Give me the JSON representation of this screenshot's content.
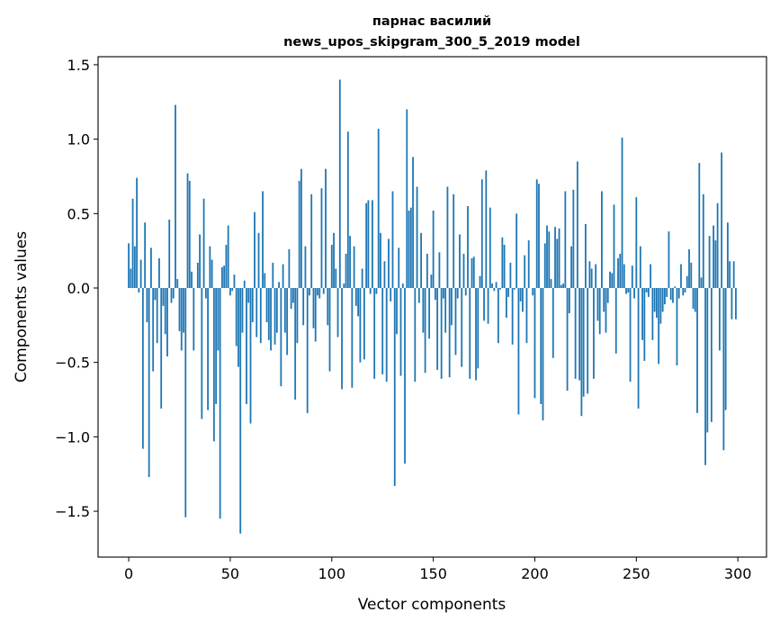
{
  "chart_data": {
    "type": "bar",
    "title": [
      "парнас василий",
      "news_upos_skipgram_300_5_2019 model"
    ],
    "xlabel": "Vector components",
    "ylabel": "Components values",
    "xlim": [
      -15.1,
      314.1
    ],
    "ylim": [
      -1.808,
      1.554
    ],
    "xticks": [
      0,
      50,
      100,
      150,
      200,
      250,
      300
    ],
    "xtick_labels": [
      "0",
      "50",
      "100",
      "150",
      "200",
      "250",
      "300"
    ],
    "yticks": [
      1.5,
      1.0,
      0.5,
      0.0,
      -0.5,
      -1.0,
      -1.5
    ],
    "ytick_labels": [
      "1.5",
      "1.0",
      "0.5",
      "0.0",
      "−0.5",
      "−1.0",
      "−1.5"
    ],
    "grid": false,
    "bar_color": "#1f77b4",
    "values": [
      0.3,
      0.13,
      0.6,
      0.28,
      0.74,
      -0.03,
      0.19,
      -1.08,
      0.44,
      -0.23,
      -1.27,
      0.27,
      -0.56,
      -0.08,
      -0.37,
      0.2,
      -0.81,
      -0.12,
      -0.31,
      -0.46,
      0.46,
      -0.1,
      -0.07,
      1.23,
      0.06,
      -0.29,
      -0.42,
      -0.3,
      -1.54,
      0.77,
      0.72,
      0.11,
      -0.42,
      0.0,
      0.17,
      0.36,
      -0.88,
      0.6,
      -0.07,
      -0.82,
      0.28,
      0.19,
      -1.03,
      -0.78,
      -0.42,
      -1.55,
      0.14,
      0.15,
      0.29,
      0.42,
      -0.05,
      -0.02,
      0.09,
      -0.39,
      -0.53,
      -1.65,
      -0.3,
      0.05,
      -0.78,
      -0.1,
      -0.91,
      -0.23,
      0.51,
      -0.33,
      0.37,
      -0.37,
      0.65,
      0.1,
      -0.23,
      -0.35,
      -0.42,
      0.17,
      -0.38,
      -0.3,
      0.04,
      -0.66,
      0.16,
      -0.3,
      -0.45,
      0.26,
      -0.14,
      -0.1,
      -0.75,
      -0.37,
      0.72,
      0.8,
      -0.25,
      0.28,
      -0.84,
      -0.05,
      0.63,
      -0.27,
      -0.36,
      -0.05,
      -0.07,
      0.67,
      -0.04,
      0.8,
      -0.25,
      -0.56,
      0.29,
      0.37,
      0.13,
      -0.33,
      1.4,
      -0.68,
      0.03,
      0.23,
      1.05,
      0.35,
      -0.67,
      0.28,
      -0.12,
      -0.19,
      -0.5,
      0.13,
      -0.48,
      0.57,
      0.59,
      -0.04,
      0.59,
      -0.61,
      -0.04,
      1.07,
      0.37,
      -0.58,
      0.18,
      -0.63,
      0.33,
      -0.09,
      0.65,
      -1.33,
      -0.31,
      0.27,
      -0.59,
      0.03,
      -1.18,
      1.2,
      0.52,
      0.54,
      0.88,
      -0.63,
      0.68,
      -0.1,
      0.37,
      -0.3,
      -0.57,
      0.23,
      -0.34,
      0.09,
      0.52,
      -0.08,
      -0.55,
      0.24,
      -0.61,
      -0.07,
      -0.3,
      0.68,
      -0.6,
      -0.25,
      0.63,
      -0.45,
      -0.07,
      0.36,
      -0.53,
      0.23,
      -0.05,
      0.55,
      -0.61,
      0.2,
      0.21,
      -0.62,
      -0.54,
      0.08,
      0.73,
      -0.22,
      0.79,
      -0.24,
      0.54,
      0.03,
      -0.02,
      0.04,
      -0.37,
      -0.01,
      0.34,
      0.29,
      -0.2,
      -0.06,
      0.17,
      -0.38,
      -0.01,
      0.5,
      -0.85,
      -0.09,
      -0.16,
      0.22,
      -0.37,
      0.32,
      0.0,
      -0.05,
      -0.74,
      0.73,
      0.7,
      -0.78,
      -0.89,
      0.3,
      0.42,
      0.38,
      0.06,
      -0.47,
      0.41,
      0.33,
      0.4,
      0.02,
      0.03,
      0.65,
      -0.69,
      -0.17,
      0.28,
      0.66,
      -0.61,
      0.85,
      -0.62,
      -0.86,
      -0.73,
      0.43,
      -0.71,
      0.18,
      0.13,
      -0.61,
      0.16,
      -0.22,
      -0.31,
      0.65,
      -0.16,
      -0.3,
      -0.1,
      0.11,
      0.1,
      0.56,
      -0.44,
      0.2,
      0.23,
      1.01,
      0.16,
      -0.04,
      -0.03,
      -0.63,
      0.15,
      -0.07,
      0.61,
      -0.81,
      0.28,
      -0.35,
      -0.49,
      -0.03,
      -0.06,
      0.16,
      -0.35,
      -0.16,
      -0.2,
      -0.51,
      -0.24,
      -0.16,
      -0.11,
      -0.06,
      0.38,
      -0.08,
      -0.1,
      0.01,
      -0.52,
      -0.07,
      0.16,
      -0.05,
      -0.03,
      0.08,
      0.26,
      0.17,
      -0.14,
      -0.16,
      -0.84,
      0.84,
      0.07,
      0.63,
      -1.19,
      -0.97,
      0.35,
      -0.9,
      0.42,
      0.32,
      0.57,
      -0.42,
      0.91,
      -1.09,
      -0.82,
      0.44,
      0.18,
      -0.21,
      0.18,
      -0.21
    ]
  }
}
